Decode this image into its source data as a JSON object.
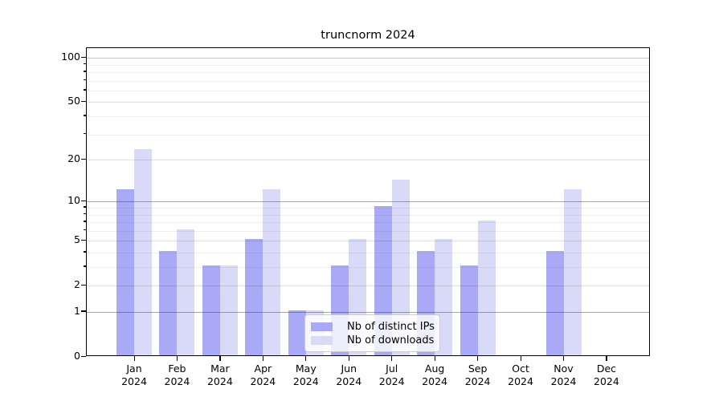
{
  "chart_data": {
    "type": "bar",
    "title": "truncnorm 2024",
    "categories": [
      "Jan 2024",
      "Feb 2024",
      "Mar 2024",
      "Apr 2024",
      "May 2024",
      "Jun 2024",
      "Jul 2024",
      "Aug 2024",
      "Sep 2024",
      "Oct 2024",
      "Nov 2024",
      "Dec 2024"
    ],
    "series": [
      {
        "name": "Nb of distinct IPs",
        "color": "#a9a9f5",
        "values": [
          12,
          4,
          3,
          5,
          1,
          3,
          9,
          4,
          3,
          0,
          4,
          0
        ]
      },
      {
        "name": "Nb of downloads",
        "color": "#d9daf8",
        "values": [
          23,
          6,
          3,
          12,
          1,
          5,
          14,
          5,
          7,
          0,
          12,
          0
        ]
      }
    ],
    "yscale": "log1p",
    "ylim": [
      0,
      110
    ],
    "yticks": [
      0,
      1,
      2,
      5,
      10,
      20,
      50,
      100
    ],
    "yticks_minor": [
      3,
      4,
      6,
      7,
      8,
      9,
      30,
      40,
      60,
      70,
      80,
      90
    ],
    "xlabel": "",
    "ylabel": "",
    "grid": "on",
    "legend_position": "inside-bottom-center"
  }
}
